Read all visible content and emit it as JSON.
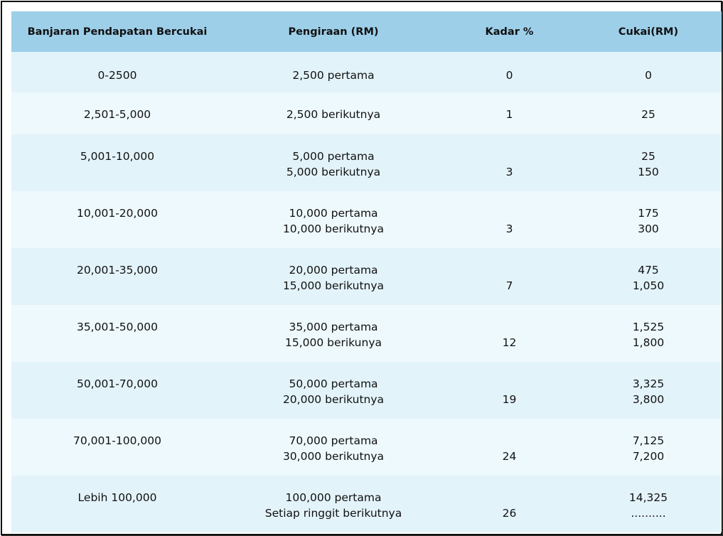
{
  "table": {
    "headers": [
      "Banjaran Pendapatan Bercukai",
      "Pengiraan (RM)",
      "Kadar %",
      "Cukai(RM)"
    ],
    "rows": [
      {
        "range": "0-2500",
        "calc": [
          "2,500 pertama"
        ],
        "rate": "0",
        "tax": [
          "0"
        ]
      },
      {
        "range": "2,501-5,000",
        "calc": [
          "2,500 berikutnya"
        ],
        "rate": "1",
        "tax": [
          "25"
        ]
      },
      {
        "range": "5,001-10,000",
        "calc": [
          "5,000 pertama",
          "5,000 berikutnya"
        ],
        "rate": "3",
        "tax": [
          "25",
          "150"
        ]
      },
      {
        "range": "10,001-20,000",
        "calc": [
          "10,000 pertama",
          "10,000 berikutnya"
        ],
        "rate": "3",
        "tax": [
          "175",
          "300"
        ]
      },
      {
        "range": "20,001-35,000",
        "calc": [
          "20,000 pertama",
          "15,000 berikutnya"
        ],
        "rate": "7",
        "tax": [
          "475",
          "1,050"
        ]
      },
      {
        "range": "35,001-50,000",
        "calc": [
          "35,000 pertama",
          "15,000 berikunya"
        ],
        "rate": "12",
        "tax": [
          "1,525",
          "1,800"
        ]
      },
      {
        "range": "50,001-70,000",
        "calc": [
          "50,000 pertama",
          "20,000 berikutnya"
        ],
        "rate": "19",
        "tax": [
          "3,325",
          "3,800"
        ]
      },
      {
        "range": "70,001-100,000",
        "calc": [
          "70,000 pertama",
          "30,000 berikutnya"
        ],
        "rate": "24",
        "tax": [
          "7,125",
          "7,200"
        ]
      },
      {
        "range": "Lebih 100,000",
        "calc": [
          "100,000 pertama",
          "Setiap ringgit berikutnya"
        ],
        "rate": "26",
        "tax": [
          "14,325",
          ".........."
        ]
      }
    ]
  }
}
